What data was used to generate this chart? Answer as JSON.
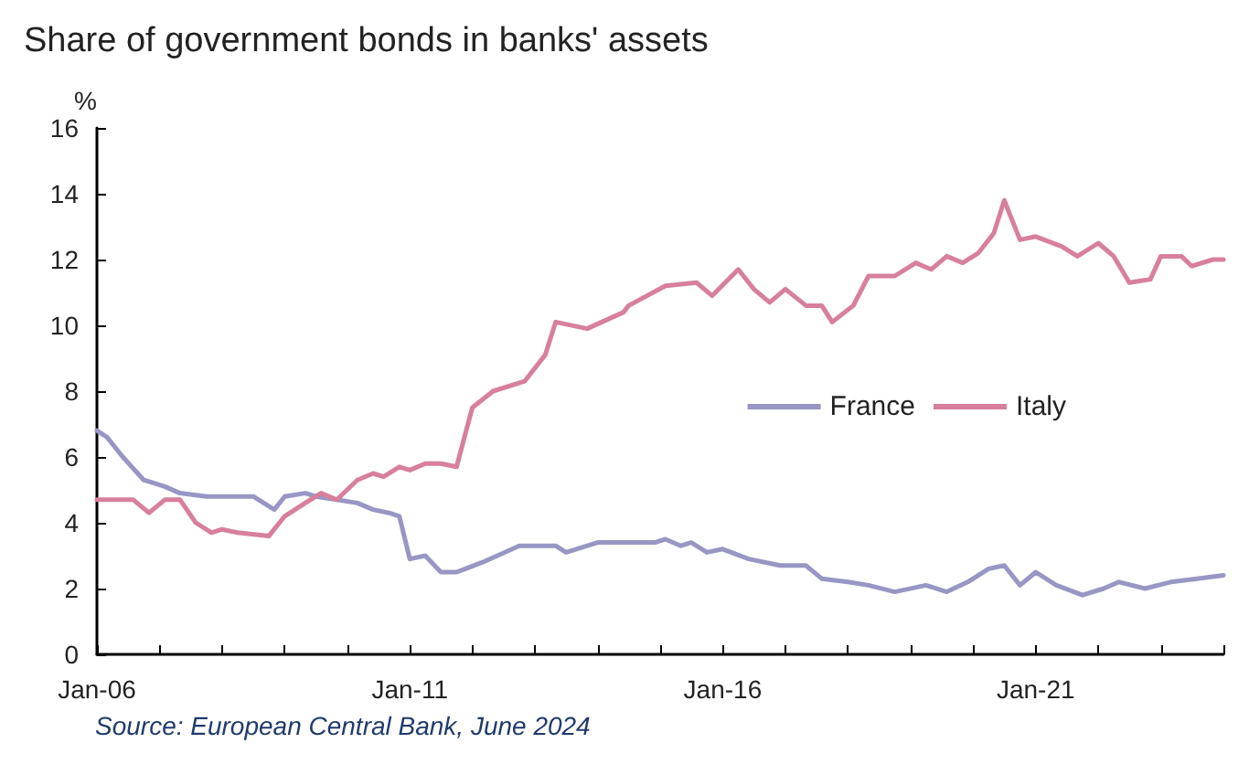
{
  "chart_data": {
    "type": "line",
    "title": "Share of government bonds in banks' assets",
    "ylabel": "%",
    "annotations": [
      "Source: European Central Bank, June 2024"
    ],
    "xlim": [
      "2006-01",
      "2024-01"
    ],
    "xticks": [
      {
        "value": "2006-01",
        "label": "Jan-06"
      },
      {
        "value": "2007-01",
        "label": null
      },
      {
        "value": "2008-01",
        "label": null
      },
      {
        "value": "2009-01",
        "label": null
      },
      {
        "value": "2010-01",
        "label": null
      },
      {
        "value": "2011-01",
        "label": "Jan-11"
      },
      {
        "value": "2012-01",
        "label": null
      },
      {
        "value": "2013-01",
        "label": null
      },
      {
        "value": "2014-01",
        "label": null
      },
      {
        "value": "2015-01",
        "label": null
      },
      {
        "value": "2016-01",
        "label": "Jan-16"
      },
      {
        "value": "2017-01",
        "label": null
      },
      {
        "value": "2018-01",
        "label": null
      },
      {
        "value": "2019-01",
        "label": null
      },
      {
        "value": "2020-01",
        "label": null
      },
      {
        "value": "2021-01",
        "label": "Jan-21"
      },
      {
        "value": "2022-01",
        "label": null
      },
      {
        "value": "2023-01",
        "label": null
      },
      {
        "value": "2024-01",
        "label": null
      }
    ],
    "ylim": [
      0,
      16
    ],
    "yticks": [
      0,
      2,
      4,
      6,
      8,
      10,
      12,
      14,
      16
    ],
    "grid": false,
    "legend": "right",
    "marker": "none",
    "line_style": "solid",
    "series": [
      {
        "name": "France",
        "color": "#9896c4",
        "x": [
          "2006-01",
          "2006-03",
          "2006-06",
          "2006-10",
          "2007-02",
          "2007-05",
          "2007-10",
          "2008-07",
          "2008-11",
          "2009-01",
          "2009-05",
          "2009-07",
          "2009-11",
          "2010-03",
          "2010-06",
          "2010-09",
          "2010-11",
          "2011-01",
          "2011-04",
          "2011-07",
          "2011-10",
          "2012-03",
          "2012-10",
          "2013-05",
          "2013-07",
          "2014-01",
          "2014-12",
          "2015-02",
          "2015-05",
          "2015-07",
          "2015-10",
          "2016-01",
          "2016-06",
          "2016-12",
          "2017-05",
          "2017-08",
          "2018-01",
          "2018-05",
          "2018-10",
          "2019-04",
          "2019-08",
          "2019-12",
          "2020-04",
          "2020-07",
          "2020-10",
          "2021-01",
          "2021-05",
          "2021-10",
          "2022-02",
          "2022-05",
          "2022-10",
          "2023-03",
          "2023-08",
          "2024-01"
        ],
        "values": [
          6.8,
          6.6,
          6.0,
          5.3,
          5.1,
          4.9,
          4.8,
          4.8,
          4.4,
          4.8,
          4.9,
          4.8,
          4.7,
          4.6,
          4.4,
          4.3,
          4.2,
          2.9,
          3.0,
          2.5,
          2.5,
          2.8,
          3.3,
          3.3,
          3.1,
          3.4,
          3.4,
          3.5,
          3.3,
          3.4,
          3.1,
          3.2,
          2.9,
          2.7,
          2.7,
          2.3,
          2.2,
          2.1,
          1.9,
          2.1,
          1.9,
          2.2,
          2.6,
          2.7,
          2.1,
          2.5,
          2.1,
          1.8,
          2.0,
          2.2,
          2.0,
          2.2,
          2.3,
          2.4
        ]
      },
      {
        "name": "Italy",
        "color": "#d77f9c",
        "x": [
          "2006-01",
          "2006-08",
          "2006-11",
          "2007-02",
          "2007-05",
          "2007-08",
          "2007-11",
          "2008-01",
          "2008-04",
          "2008-10",
          "2009-01",
          "2009-05",
          "2009-08",
          "2009-11",
          "2010-03",
          "2010-06",
          "2010-08",
          "2010-11",
          "2011-01",
          "2011-04",
          "2011-07",
          "2011-10",
          "2012-01",
          "2012-05",
          "2012-11",
          "2013-03",
          "2013-05",
          "2013-11",
          "2014-06",
          "2014-07",
          "2015-02",
          "2015-08",
          "2015-11",
          "2016-04",
          "2016-07",
          "2016-10",
          "2017-01",
          "2017-05",
          "2017-08",
          "2017-10",
          "2018-02",
          "2018-05",
          "2018-10",
          "2019-02",
          "2019-05",
          "2019-08",
          "2019-11",
          "2020-02",
          "2020-05",
          "2020-07",
          "2020-10",
          "2021-01",
          "2021-06",
          "2021-09",
          "2022-01",
          "2022-04",
          "2022-07",
          "2022-11",
          "2023-01",
          "2023-05",
          "2023-07",
          "2023-11",
          "2024-01"
        ],
        "values": [
          4.7,
          4.7,
          4.3,
          4.7,
          4.7,
          4.0,
          3.7,
          3.8,
          3.7,
          3.6,
          4.2,
          4.6,
          4.9,
          4.7,
          5.3,
          5.5,
          5.4,
          5.7,
          5.6,
          5.8,
          5.8,
          5.7,
          7.5,
          8.0,
          8.3,
          9.1,
          10.1,
          9.9,
          10.4,
          10.6,
          11.2,
          11.3,
          10.9,
          11.7,
          11.1,
          10.7,
          11.1,
          10.6,
          10.6,
          10.1,
          10.6,
          11.5,
          11.5,
          11.9,
          11.7,
          12.1,
          11.9,
          12.2,
          12.8,
          13.8,
          12.6,
          12.7,
          12.4,
          12.1,
          12.5,
          12.1,
          11.3,
          11.4,
          12.1,
          12.1,
          11.8,
          12.0,
          12.0
        ]
      }
    ]
  }
}
